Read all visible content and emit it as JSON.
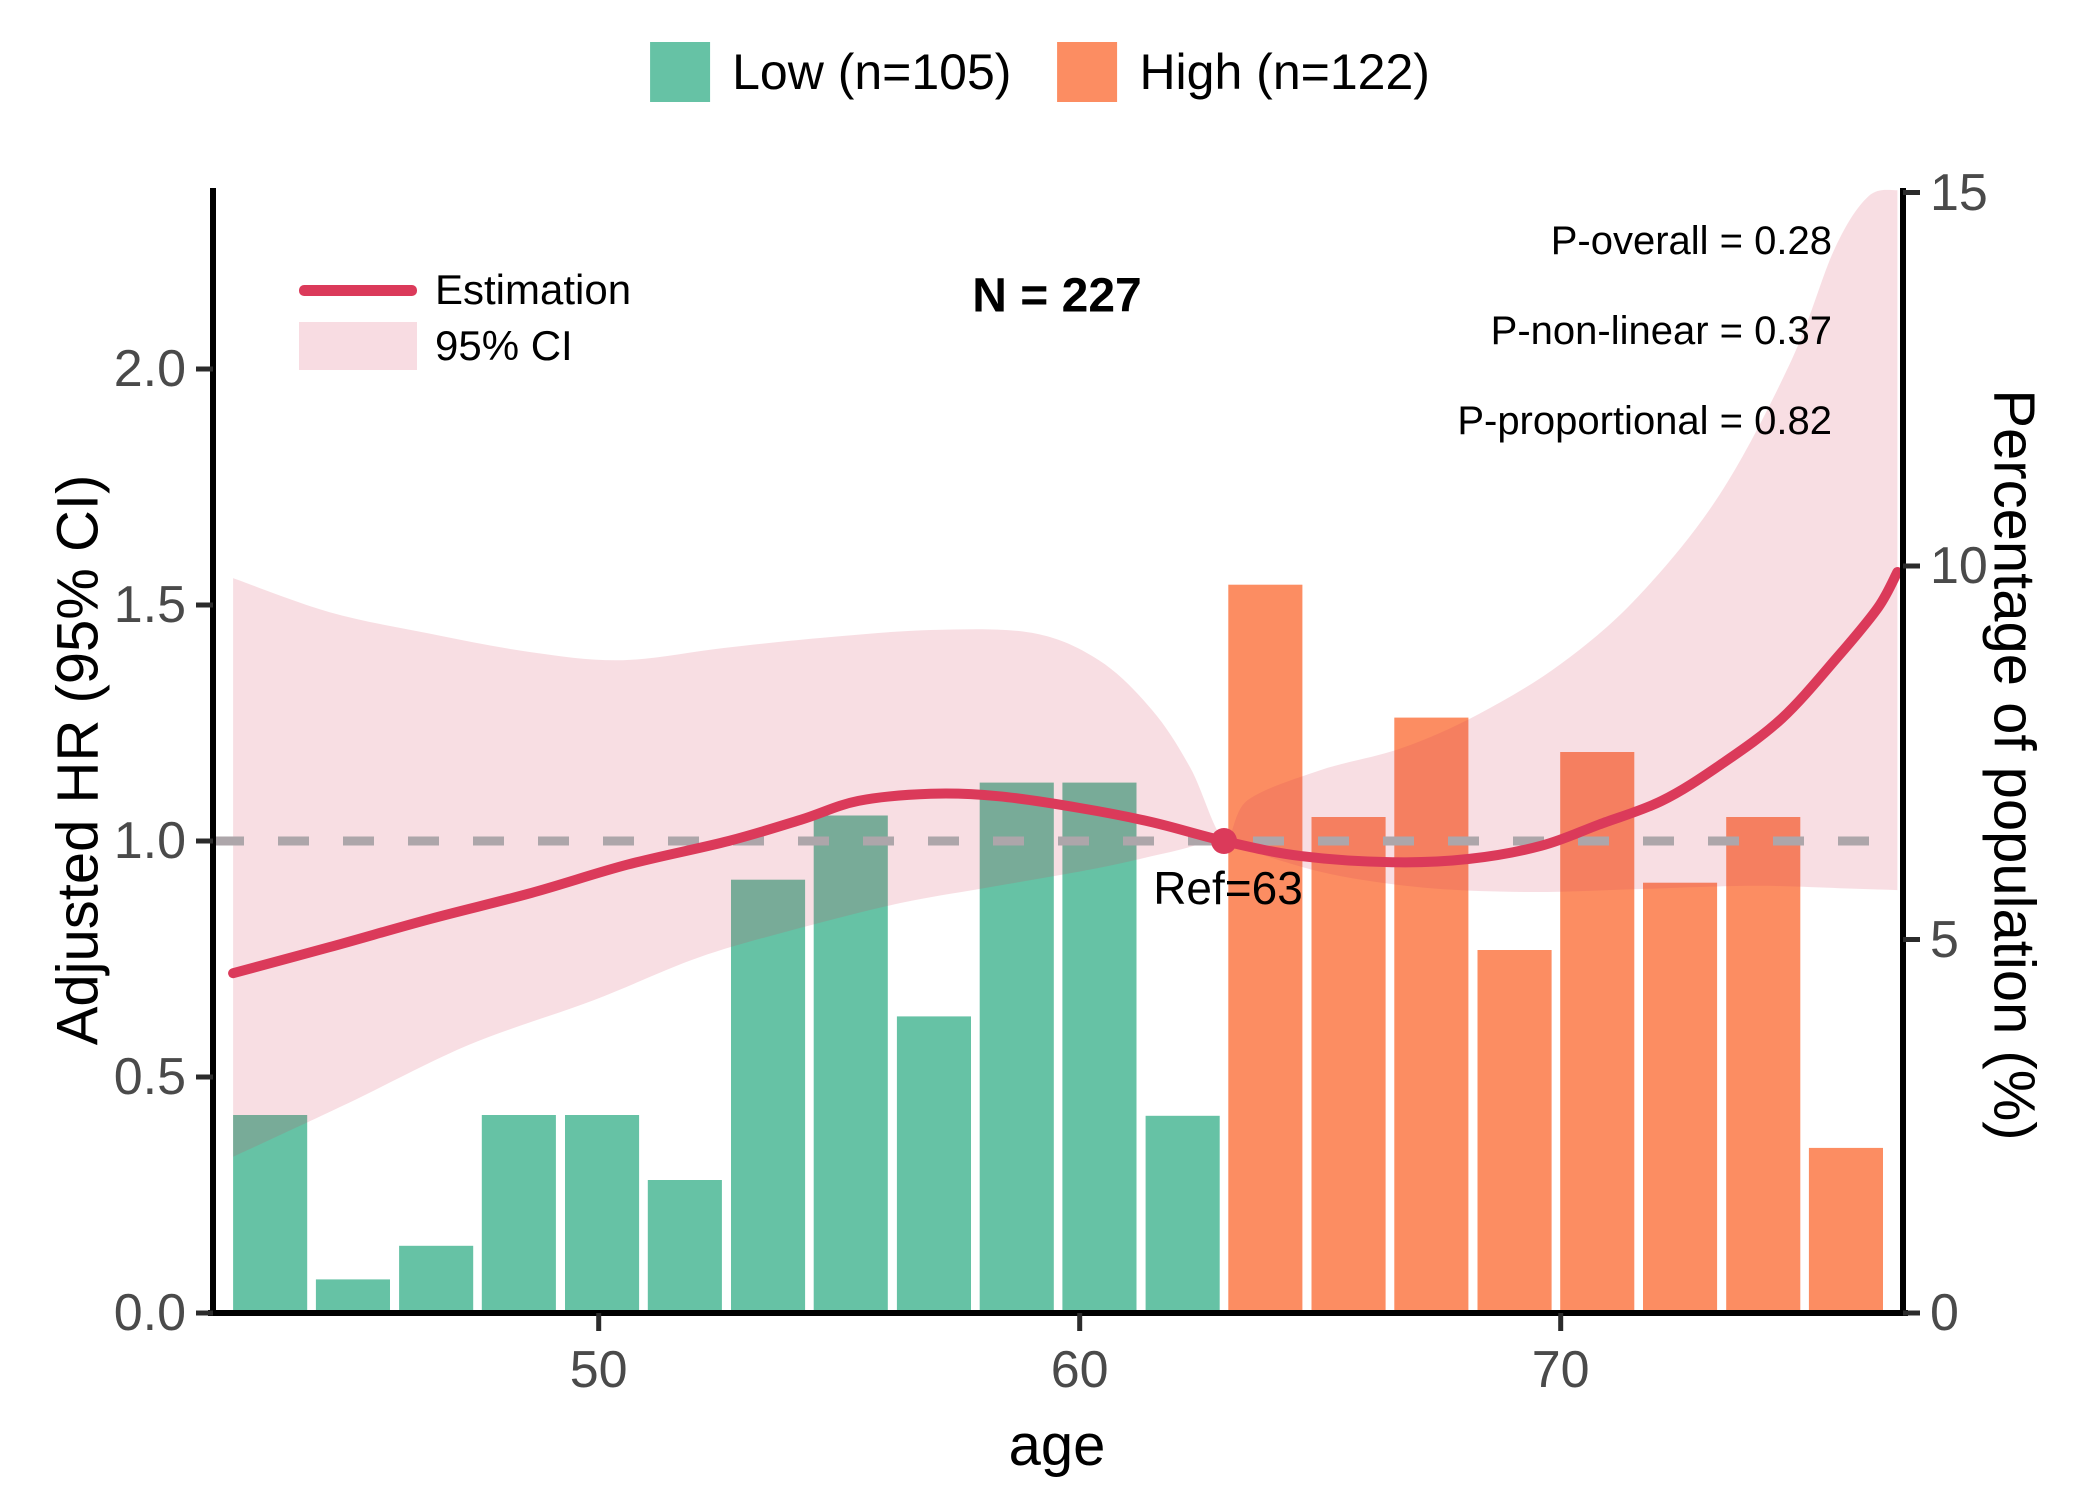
{
  "legend_top": {
    "low": {
      "label": "Low (n=105)",
      "color": "#66C2A5"
    },
    "high": {
      "label": "High (n=122)",
      "color": "#FC8D62"
    }
  },
  "inner_legend": {
    "line_label": "Estimation",
    "band_label": "95% CI"
  },
  "annotations": {
    "n_total": "N = 227",
    "p_overall": "P-overall = 0.28",
    "p_nonlinear": "P-non-linear = 0.37",
    "p_proportional": "P-proportional = 0.82",
    "ref_label": "Ref=63"
  },
  "axes": {
    "left": {
      "title": "Adjusted HR (95% CI)",
      "ticks": [
        "0.0",
        "0.5",
        "1.0",
        "1.5",
        "2.0"
      ]
    },
    "right": {
      "title": "Percentage of population (%)",
      "ticks": [
        "0",
        "5",
        "10",
        "15"
      ]
    },
    "bottom": {
      "title": "age",
      "ticks": [
        "50",
        "60",
        "70"
      ]
    }
  },
  "colors": {
    "low_bar": "#66C2A5",
    "high_bar": "#FC8D62",
    "spline": "#DB3A5A",
    "ci_fill": "rgba(214,60,90,0.17)",
    "ci_legend_key": "#F8DCE2",
    "ref_dash": "#ADA6AA",
    "axis": "#000000",
    "tick_text": "#4a4a4a"
  },
  "chart_data": {
    "type": "bar",
    "subtype": "histogram with overlaid restricted-cubic-spline hazard-ratio curve and 95% CI band",
    "title": "",
    "xlabel": "age",
    "ylabel_left": "Adjusted HR (95% CI)",
    "ylabel_right": "Percentage of population (%)",
    "x_range": [
      41.98,
      77.2
    ],
    "y_left_range": [
      0,
      2.39
    ],
    "y_right_range": [
      0,
      15.1
    ],
    "x_ticks": [
      50,
      60,
      70
    ],
    "y_left_ticks": [
      0.0,
      0.5,
      1.0,
      1.5,
      2.0
    ],
    "y_right_ticks": [
      0,
      5,
      10,
      15
    ],
    "n_total": 227,
    "p_overall": 0.28,
    "p_non_linear": 0.37,
    "p_proportional": 0.82,
    "reference_point": {
      "age": 63,
      "hr": 1.0
    },
    "histogram": {
      "bin_width_years": 1.72,
      "bar_width_years": 1.54,
      "series": [
        {
          "name": "Low (n=105)",
          "group": "low"
        },
        {
          "name": "High (n=122)",
          "group": "high"
        }
      ],
      "bars": [
        {
          "age": 43.17,
          "pct": 2.65,
          "group": "low"
        },
        {
          "age": 44.89,
          "pct": 0.45,
          "group": "low"
        },
        {
          "age": 46.62,
          "pct": 0.9,
          "group": "low"
        },
        {
          "age": 48.34,
          "pct": 2.65,
          "group": "low"
        },
        {
          "age": 50.07,
          "pct": 2.65,
          "group": "low"
        },
        {
          "age": 51.79,
          "pct": 1.78,
          "group": "low"
        },
        {
          "age": 53.52,
          "pct": 5.8,
          "group": "low"
        },
        {
          "age": 55.24,
          "pct": 6.66,
          "group": "low"
        },
        {
          "age": 56.97,
          "pct": 3.97,
          "group": "low"
        },
        {
          "age": 58.69,
          "pct": 7.1,
          "group": "low"
        },
        {
          "age": 60.41,
          "pct": 7.1,
          "group": "low"
        },
        {
          "age": 62.14,
          "pct": 2.64,
          "group": "low"
        },
        {
          "age": 63.86,
          "pct": 9.75,
          "group": "high"
        },
        {
          "age": 65.59,
          "pct": 6.64,
          "group": "high"
        },
        {
          "age": 67.31,
          "pct": 7.97,
          "group": "high"
        },
        {
          "age": 69.04,
          "pct": 4.86,
          "group": "high"
        },
        {
          "age": 70.76,
          "pct": 7.51,
          "group": "high"
        },
        {
          "age": 72.48,
          "pct": 5.76,
          "group": "high"
        },
        {
          "age": 74.21,
          "pct": 6.64,
          "group": "high"
        },
        {
          "age": 75.93,
          "pct": 2.21,
          "group": "high"
        }
      ]
    },
    "spline": {
      "name": "Estimation",
      "points": [
        [
          42.4,
          0.72
        ],
        [
          44.4,
          0.775
        ],
        [
          46.5,
          0.835
        ],
        [
          48.6,
          0.89
        ],
        [
          50.6,
          0.95
        ],
        [
          52.7,
          1.0
        ],
        [
          54.2,
          1.045
        ],
        [
          55.4,
          1.085
        ],
        [
          56.9,
          1.1
        ],
        [
          58.3,
          1.095
        ],
        [
          60.0,
          1.07
        ],
        [
          61.5,
          1.04
        ],
        [
          63.0,
          1.0
        ],
        [
          64.6,
          0.968
        ],
        [
          66.5,
          0.955
        ],
        [
          68.1,
          0.962
        ],
        [
          69.6,
          0.99
        ],
        [
          70.8,
          1.035
        ],
        [
          72.1,
          1.085
        ],
        [
          73.3,
          1.16
        ],
        [
          74.6,
          1.26
        ],
        [
          75.8,
          1.395
        ],
        [
          76.6,
          1.495
        ],
        [
          77.0,
          1.57
        ]
      ]
    },
    "ci_band": {
      "name": "95% CI",
      "upper": [
        [
          42.4,
          1.557
        ],
        [
          44.4,
          1.485
        ],
        [
          46.5,
          1.439
        ],
        [
          48.6,
          1.4
        ],
        [
          50.5,
          1.383
        ],
        [
          52.6,
          1.409
        ],
        [
          54.6,
          1.43
        ],
        [
          56.9,
          1.447
        ],
        [
          59.0,
          1.441
        ],
        [
          60.4,
          1.383
        ],
        [
          61.5,
          1.278
        ],
        [
          62.3,
          1.155
        ],
        [
          63.0,
          1.004
        ],
        [
          63.5,
          1.087
        ],
        [
          65.0,
          1.15
        ],
        [
          66.7,
          1.197
        ],
        [
          68.3,
          1.269
        ],
        [
          70.0,
          1.375
        ],
        [
          71.6,
          1.517
        ],
        [
          73.3,
          1.733
        ],
        [
          74.8,
          2.019
        ],
        [
          75.7,
          2.256
        ],
        [
          76.4,
          2.366
        ],
        [
          77.0,
          2.379
        ]
      ],
      "lower": [
        [
          42.4,
          0.331
        ],
        [
          44.8,
          0.445
        ],
        [
          47.3,
          0.568
        ],
        [
          49.9,
          0.663
        ],
        [
          52.1,
          0.754
        ],
        [
          54.2,
          0.816
        ],
        [
          56.3,
          0.869
        ],
        [
          58.3,
          0.905
        ],
        [
          60.4,
          0.943
        ],
        [
          61.9,
          0.977
        ],
        [
          63.0,
          1.0
        ],
        [
          64.0,
          0.964
        ],
        [
          65.4,
          0.926
        ],
        [
          67.3,
          0.9
        ],
        [
          69.4,
          0.892
        ],
        [
          71.6,
          0.898
        ],
        [
          74.0,
          0.905
        ],
        [
          75.8,
          0.9
        ],
        [
          77.0,
          0.896
        ]
      ]
    }
  }
}
